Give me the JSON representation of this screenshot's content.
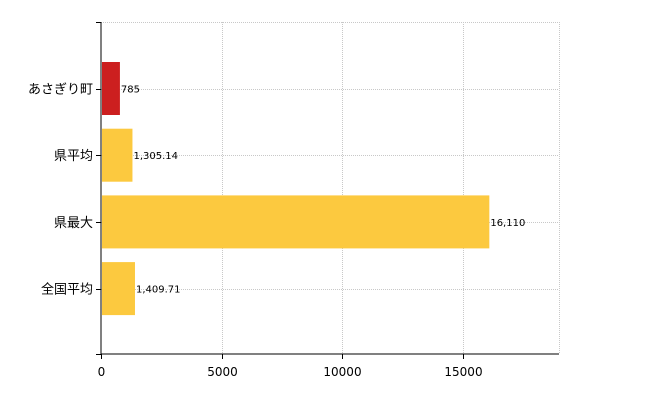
{
  "chart_data": {
    "type": "bar",
    "orientation": "horizontal",
    "categories": [
      "あさぎり町",
      "県平均",
      "県最大",
      "全国平均"
    ],
    "values": [
      785,
      1305.14,
      16110,
      1409.71
    ],
    "value_labels": [
      "785",
      "1,305.14",
      "16,110",
      "1,409.71"
    ],
    "bar_colors": [
      "#cc1f1f",
      "#fcc93f",
      "#fcc93f",
      "#fcc93f"
    ],
    "xlim": [
      0,
      19000
    ],
    "x_ticks": [
      0,
      5000,
      10000,
      15000
    ],
    "x_tick_labels": [
      "0",
      "5000",
      "10000",
      "15000"
    ],
    "grid": "vertical-dashed",
    "legend": "none"
  }
}
